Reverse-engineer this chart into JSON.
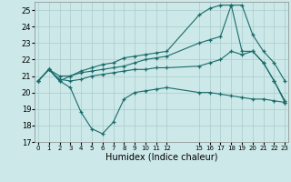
{
  "background_color": "#cce8e8",
  "grid_color": "#aacccc",
  "line_color": "#1a6b6b",
  "xlabel": "Humidex (Indice chaleur)",
  "ylim": [
    17,
    25.5
  ],
  "yticks": [
    17,
    18,
    19,
    20,
    21,
    22,
    23,
    24,
    25
  ],
  "xlim": [
    -0.3,
    23.3
  ],
  "series": [
    {
      "x": [
        0,
        1,
        2,
        3,
        4,
        5,
        6,
        7,
        8,
        9,
        10,
        11,
        12,
        15,
        16,
        17,
        18,
        19,
        20,
        21,
        22,
        23
      ],
      "y": [
        20.7,
        21.4,
        20.7,
        20.3,
        18.8,
        17.8,
        17.5,
        18.2,
        19.6,
        20.0,
        20.1,
        20.2,
        20.3,
        20.0,
        20.0,
        19.9,
        19.8,
        19.7,
        19.6,
        19.6,
        19.5,
        19.4
      ]
    },
    {
      "x": [
        0,
        1,
        2,
        3,
        4,
        5,
        6,
        7,
        8,
        9,
        10,
        11,
        12,
        15,
        16,
        17,
        18,
        19,
        20,
        21,
        22,
        23
      ],
      "y": [
        20.7,
        21.4,
        20.8,
        20.7,
        20.8,
        21.0,
        21.1,
        21.2,
        21.3,
        21.4,
        21.4,
        21.5,
        21.5,
        21.6,
        21.8,
        22.0,
        22.5,
        22.3,
        22.5,
        21.8,
        20.7,
        19.5
      ]
    },
    {
      "x": [
        0,
        1,
        2,
        3,
        4,
        5,
        6,
        7,
        8,
        9,
        10,
        11,
        12,
        15,
        16,
        17,
        18,
        19,
        20,
        21,
        22,
        23
      ],
      "y": [
        20.7,
        21.4,
        21.0,
        21.0,
        21.2,
        21.3,
        21.4,
        21.5,
        21.6,
        21.8,
        22.0,
        22.1,
        22.2,
        23.0,
        23.2,
        23.4,
        25.3,
        25.3,
        23.5,
        22.5,
        21.8,
        20.7
      ]
    },
    {
      "x": [
        0,
        1,
        2,
        3,
        4,
        5,
        6,
        7,
        8,
        9,
        10,
        11,
        12,
        15,
        16,
        17,
        18,
        19,
        20,
        21,
        22,
        23
      ],
      "y": [
        20.7,
        21.4,
        20.7,
        21.0,
        21.3,
        21.5,
        21.7,
        21.8,
        22.1,
        22.2,
        22.3,
        22.4,
        22.5,
        24.7,
        25.1,
        25.3,
        25.3,
        22.5,
        22.5,
        21.8,
        20.7,
        19.4
      ]
    }
  ]
}
